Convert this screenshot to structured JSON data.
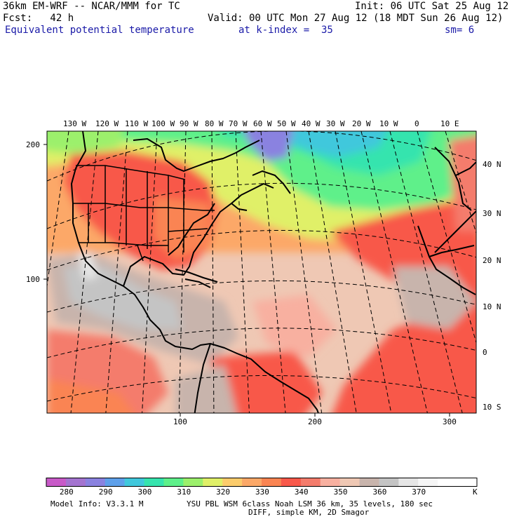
{
  "header": {
    "model": "36km EM-WRF -- NCAR/MMM for TC",
    "init": "Init: 06 UTC Sat 25 Aug 12",
    "fcst": "Fcst:   42 h",
    "valid": "Valid: 00 UTC Mon 27 Aug 12 (18 MDT Sun 26 Aug 12)",
    "field": "Equivalent potential temperature",
    "level": "at k-index =  35",
    "smooth": "sm= 6"
  },
  "map": {
    "top_lon_labels": [
      "130 W",
      "120 W",
      "110 W",
      "100 W",
      "90 W",
      "80 W",
      "70 W",
      "60 W",
      "50 W",
      "40 W",
      "30 W",
      "20 W",
      "10 W",
      "0",
      "10 E"
    ],
    "right_lat_labels": [
      "40 N",
      "30 N",
      "20 N",
      "10 N",
      "0",
      "10 S"
    ],
    "left_grid_labels": [
      "200",
      "100"
    ],
    "bottom_grid_labels": [
      "100",
      "200",
      "300"
    ]
  },
  "colorbar": {
    "colors": [
      "#c85ac8",
      "#a474d0",
      "#8a82e0",
      "#5ea0ea",
      "#40c8dc",
      "#36e4ae",
      "#5ef08a",
      "#9cf06c",
      "#e0f068",
      "#fccc6c",
      "#fca868",
      "#fa8452",
      "#f8584a",
      "#f47c6c",
      "#f8b0a0",
      "#efc8b4",
      "#c8b4ac",
      "#c4c4c4",
      "#e6e6e6",
      "#f6f6f6",
      "#ffffff",
      "#ffffff"
    ],
    "labels": [
      "280",
      "290",
      "300",
      "310",
      "320",
      "330",
      "340",
      "350",
      "360",
      "370"
    ],
    "unit": "K"
  },
  "footer": {
    "line1_left": "Model Info: V3.3.1 M",
    "line1_right": "YSU PBL  WSM 6class  Noah LSM  36 km,   35 levels,  180 sec",
    "line2": "DIFF, simple KM, 2D Smagor"
  }
}
